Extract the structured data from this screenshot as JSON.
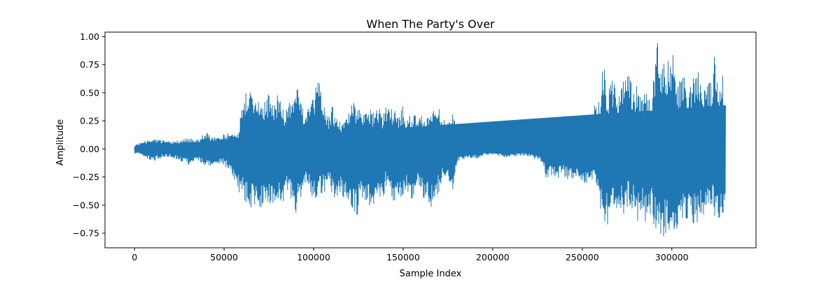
{
  "chart_data": {
    "type": "line",
    "title": "When The Party's Over",
    "xlabel": "Sample Index",
    "ylabel": "Amplitude",
    "xlim": [
      -16500,
      347000
    ],
    "ylim": [
      -0.88,
      1.04
    ],
    "x_ticks": [
      0,
      50000,
      100000,
      150000,
      200000,
      250000,
      300000
    ],
    "x_tick_labels": [
      "0",
      "50000",
      "100000",
      "150000",
      "200000",
      "250000",
      "300000"
    ],
    "y_ticks": [
      -0.75,
      -0.5,
      -0.25,
      0.0,
      0.25,
      0.5,
      0.75,
      1.0
    ],
    "y_tick_labels": [
      "−0.75",
      "−0.50",
      "−0.25",
      "0.00",
      "0.25",
      "0.50",
      "0.75",
      "1.00"
    ],
    "grid": false,
    "color": "#1f77b4",
    "series": [
      {
        "x": [
          0,
          5000,
          10000,
          15000,
          20000,
          25000,
          30000,
          35000,
          40000,
          45000,
          50000,
          55000,
          58000,
          60000,
          62000,
          65000,
          68000,
          70000,
          73000,
          75000,
          78000,
          80000,
          83000,
          85000,
          88000,
          90000,
          92000,
          94000,
          96000,
          98000,
          100000,
          102000,
          104000,
          106000,
          108000,
          110000,
          113000,
          116000,
          118000,
          120000,
          122000,
          124000,
          126000,
          128000,
          130000,
          133000,
          136000,
          138000,
          140000,
          142000,
          145000,
          148000,
          150000,
          152000,
          155000,
          158000,
          160000,
          163000,
          166000,
          168000,
          170000,
          172000,
          175000,
          178000,
          180000,
          185000,
          190000,
          195000,
          200000,
          205000,
          210000,
          215000,
          220000,
          225000,
          228000,
          230000,
          233000,
          236000,
          240000,
          243000,
          246000,
          250000,
          253000,
          256000,
          260000,
          262000,
          264000,
          266000,
          268000,
          270000,
          272000,
          274000,
          276000,
          278000,
          280000,
          282000,
          284000,
          286000,
          288000,
          290000,
          292000,
          294000,
          296000,
          298000,
          300000,
          302000,
          304000,
          306000,
          308000,
          310000,
          312000,
          314000,
          316000,
          318000,
          320000,
          322000,
          324000,
          326000,
          328000,
          330000
        ],
        "max": [
          0.04,
          0.06,
          0.1,
          0.08,
          0.06,
          0.08,
          0.1,
          0.08,
          0.15,
          0.1,
          0.13,
          0.15,
          0.17,
          0.4,
          0.52,
          0.53,
          0.5,
          0.49,
          0.43,
          0.5,
          0.4,
          0.52,
          0.35,
          0.4,
          0.43,
          0.52,
          0.58,
          0.4,
          0.3,
          0.42,
          0.45,
          0.7,
          0.52,
          0.38,
          0.3,
          0.4,
          0.28,
          0.22,
          0.3,
          0.35,
          0.42,
          0.4,
          0.38,
          0.3,
          0.38,
          0.35,
          0.42,
          0.3,
          0.4,
          0.36,
          0.37,
          0.3,
          0.39,
          0.25,
          0.33,
          0.27,
          0.3,
          0.28,
          0.33,
          0.38,
          0.37,
          0.28,
          0.23,
          0.32,
          0.1,
          0.08,
          0.1,
          0.07,
          0.05,
          0.06,
          0.09,
          0.1,
          0.06,
          0.1,
          0.12,
          0.2,
          0.18,
          0.18,
          0.35,
          0.25,
          0.3,
          0.28,
          0.3,
          0.35,
          0.5,
          0.82,
          0.4,
          0.7,
          0.6,
          0.45,
          0.65,
          0.68,
          0.73,
          0.52,
          0.58,
          0.45,
          0.58,
          0.5,
          0.43,
          0.7,
          0.95,
          0.78,
          0.9,
          0.78,
          0.88,
          0.75,
          0.62,
          0.72,
          0.55,
          0.58,
          0.68,
          0.65,
          0.78,
          0.5,
          0.67,
          0.63,
          0.85,
          0.6,
          0.7,
          0.52
        ],
        "min": [
          -0.04,
          -0.06,
          -0.12,
          -0.08,
          -0.07,
          -0.1,
          -0.15,
          -0.1,
          -0.16,
          -0.15,
          -0.14,
          -0.25,
          -0.4,
          -0.42,
          -0.48,
          -0.55,
          -0.52,
          -0.58,
          -0.45,
          -0.48,
          -0.53,
          -0.47,
          -0.55,
          -0.42,
          -0.51,
          -0.58,
          -0.53,
          -0.35,
          -0.34,
          -0.41,
          -0.48,
          -0.43,
          -0.4,
          -0.39,
          -0.25,
          -0.4,
          -0.48,
          -0.42,
          -0.5,
          -0.45,
          -0.55,
          -0.66,
          -0.43,
          -0.44,
          -0.5,
          -0.53,
          -0.45,
          -0.52,
          -0.35,
          -0.38,
          -0.48,
          -0.42,
          -0.5,
          -0.38,
          -0.45,
          -0.37,
          -0.4,
          -0.49,
          -0.53,
          -0.44,
          -0.38,
          -0.26,
          -0.26,
          -0.38,
          -0.12,
          -0.08,
          -0.09,
          -0.06,
          -0.05,
          -0.07,
          -0.07,
          -0.06,
          -0.06,
          -0.1,
          -0.15,
          -0.27,
          -0.25,
          -0.26,
          -0.25,
          -0.28,
          -0.25,
          -0.3,
          -0.3,
          -0.28,
          -0.52,
          -0.65,
          -0.68,
          -0.55,
          -0.58,
          -0.5,
          -0.55,
          -0.6,
          -0.48,
          -0.55,
          -0.62,
          -0.7,
          -0.55,
          -0.75,
          -0.58,
          -0.68,
          -0.88,
          -0.75,
          -0.82,
          -0.7,
          -0.8,
          -0.75,
          -0.65,
          -0.7,
          -0.72,
          -0.65,
          -0.68,
          -0.72,
          -0.62,
          -0.6,
          -0.55,
          -0.52,
          -0.62,
          -0.78,
          -0.6,
          -0.65
        ]
      }
    ]
  }
}
